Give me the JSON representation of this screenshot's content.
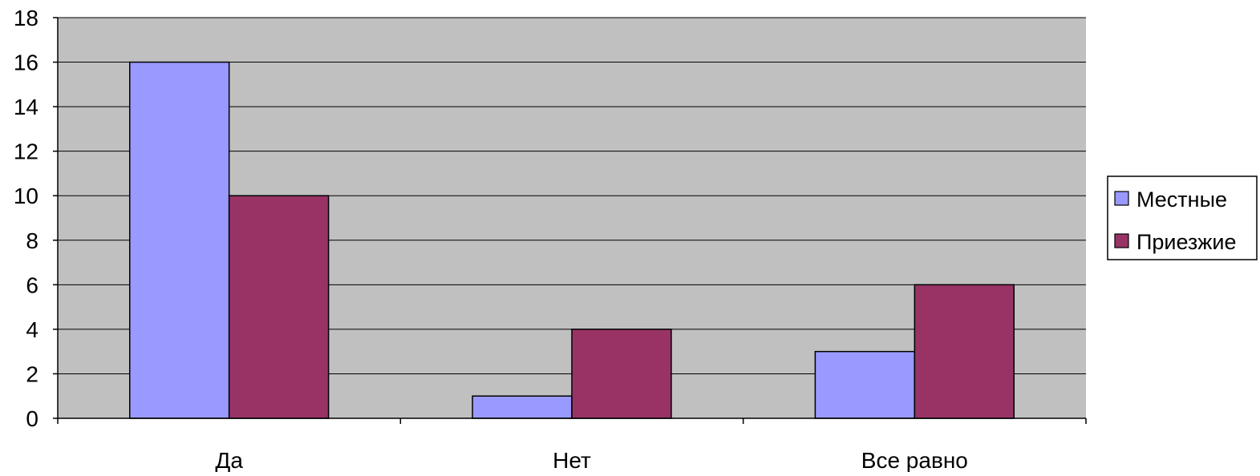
{
  "chart_data": {
    "type": "bar",
    "title": "",
    "xlabel": "",
    "ylabel": "",
    "categories": [
      "Да",
      "Нет",
      "Все равно"
    ],
    "series": [
      {
        "name": "Местные",
        "color": "#9999ff",
        "values": [
          16,
          1,
          3
        ]
      },
      {
        "name": "Приезжие",
        "color": "#993366",
        "values": [
          10,
          4,
          6
        ]
      }
    ],
    "ylim": [
      0,
      18
    ],
    "yticks": [
      "0",
      "2",
      "4",
      "6",
      "8",
      "10",
      "12",
      "14",
      "16",
      "18"
    ],
    "grid": true,
    "legend_position": "right",
    "plot_background": "#c0c0c0"
  }
}
